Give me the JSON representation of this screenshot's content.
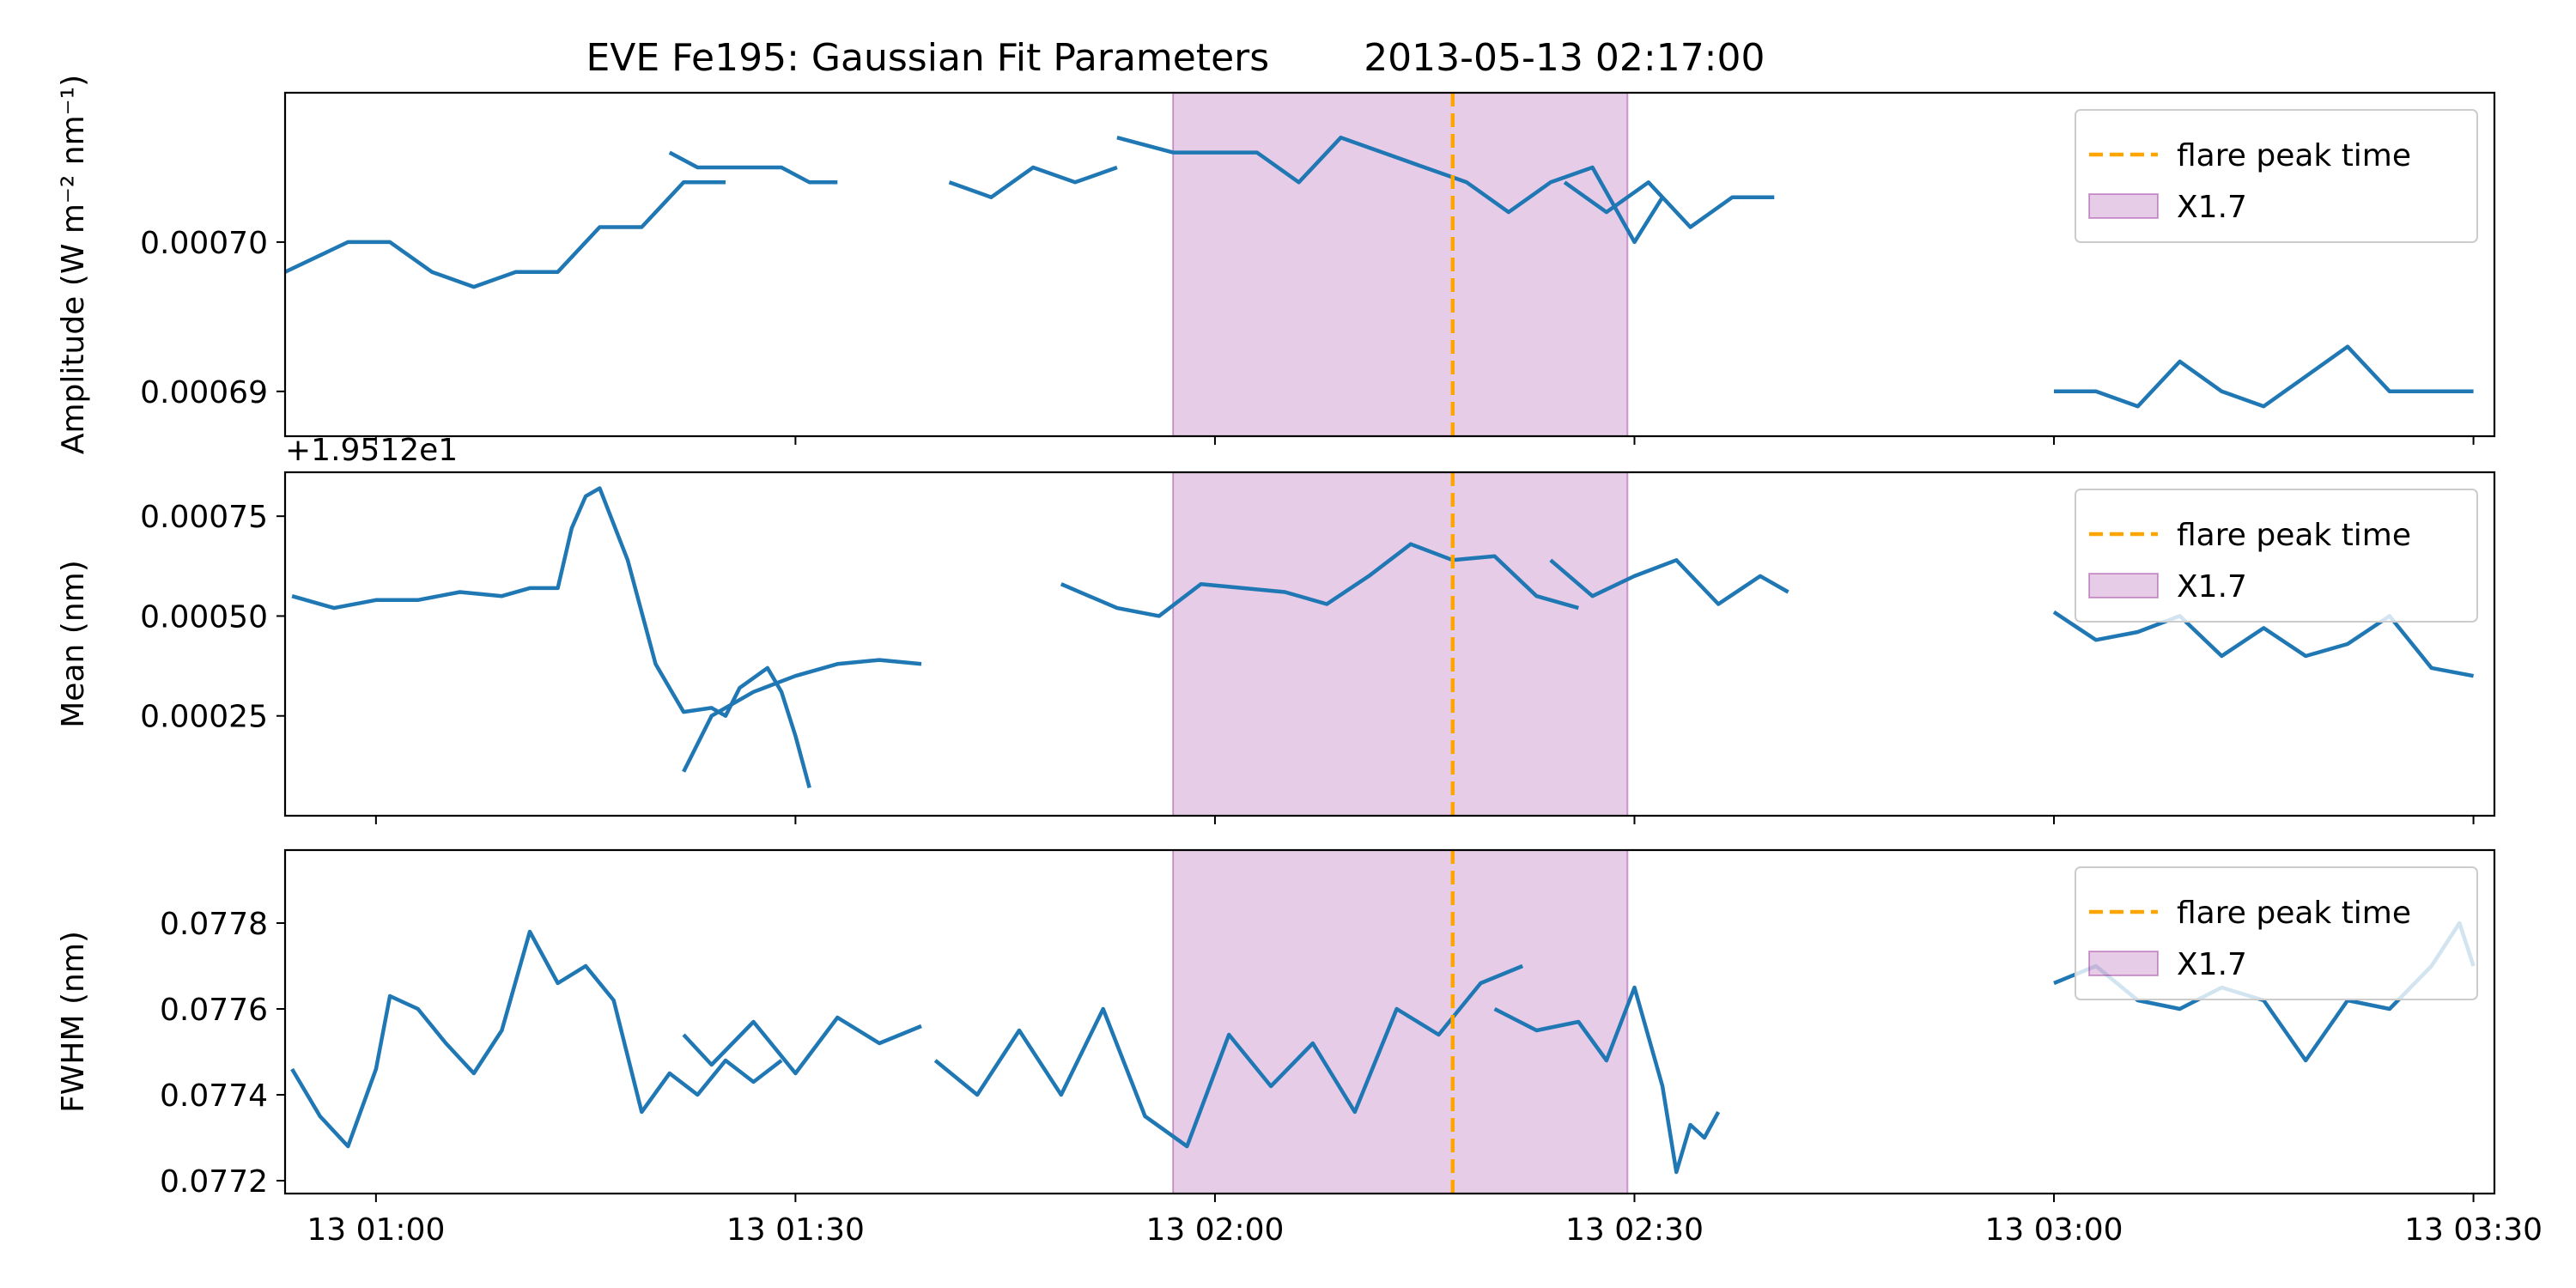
{
  "figure": {
    "title": "EVE Fe195: Gaussian Fit Parameters",
    "timestamp": "2013-05-13 02:17:00",
    "x_tick_labels": [
      "13 01:00",
      "13 01:30",
      "13 02:00",
      "13 02:30",
      "13 03:00",
      "13 03:30"
    ]
  },
  "chart_data": [
    {
      "type": "line",
      "panel": "amplitude",
      "ylabel": "Amplitude (W m⁻² nm⁻¹)",
      "x_unit": "minutes after 2013-05-13 00:00",
      "xlim": [
        53.5,
        211.5
      ],
      "ylim": [
        0.000687,
        0.00071
      ],
      "y_ticks": [
        0.00069,
        0.0007
      ],
      "y_tick_labels": [
        "0.00069",
        "0.00070"
      ],
      "line_color": "#1f77b4",
      "segments": [
        {
          "x": [
            53.5,
            58,
            61,
            64,
            67,
            70,
            73,
            76,
            79,
            82,
            85
          ],
          "y": [
            0.000698,
            0.0007,
            0.0007,
            0.000698,
            0.000697,
            0.000698,
            0.000698,
            0.000701,
            0.000701,
            0.000704,
            0.000704
          ]
        },
        {
          "x": [
            81,
            83,
            86,
            89,
            91,
            93
          ],
          "y": [
            0.000706,
            0.000705,
            0.000705,
            0.000705,
            0.000704,
            0.000704
          ]
        },
        {
          "x": [
            101,
            104,
            107,
            110,
            113
          ],
          "y": [
            0.000704,
            0.000703,
            0.000705,
            0.000704,
            0.000705
          ]
        },
        {
          "x": [
            113,
            117,
            120,
            123,
            126,
            129,
            132,
            135,
            138,
            141,
            144,
            147,
            150,
            152
          ],
          "y": [
            0.000707,
            0.000706,
            0.000706,
            0.000706,
            0.000704,
            0.000707,
            0.000706,
            0.000705,
            0.000704,
            0.000702,
            0.000704,
            0.000705,
            0.0007,
            0.000703
          ]
        },
        {
          "x": [
            145,
            148,
            151,
            154,
            157,
            160
          ],
          "y": [
            0.000704,
            0.000702,
            0.000704,
            0.000701,
            0.000703,
            0.000703
          ]
        },
        {
          "x": [
            180,
            183,
            186,
            189,
            192,
            195,
            198,
            201,
            204,
            207,
            210
          ],
          "y": [
            0.00069,
            0.00069,
            0.000689,
            0.000692,
            0.00069,
            0.000689,
            0.000691,
            0.000693,
            0.00069,
            0.00069,
            0.00069
          ]
        }
      ]
    },
    {
      "type": "line",
      "panel": "mean",
      "ylabel": "Mean (nm)",
      "offset_label": "+1.9512e1",
      "x_unit": "minutes after 2013-05-13 00:00",
      "xlim": [
        53.5,
        211.5
      ],
      "ylim": [
        0.0,
        0.00086
      ],
      "y_ticks": [
        0.00025,
        0.0005,
        0.00075
      ],
      "y_tick_labels": [
        "0.00025",
        "0.00050",
        "0.00075"
      ],
      "line_color": "#1f77b4",
      "segments": [
        {
          "x": [
            54,
            57,
            60,
            63,
            66,
            69,
            71,
            73,
            74,
            75,
            76,
            78,
            80,
            82,
            84,
            85,
            86,
            88,
            89,
            90,
            91
          ],
          "y": [
            0.00055,
            0.00052,
            0.00054,
            0.00054,
            0.00056,
            0.00055,
            0.00057,
            0.00057,
            0.00072,
            0.0008,
            0.00082,
            0.00064,
            0.00038,
            0.00026,
            0.00027,
            0.00025,
            0.00032,
            0.00037,
            0.00031,
            0.0002,
            7e-05
          ]
        },
        {
          "x": [
            82,
            84,
            87,
            90,
            93,
            96,
            99
          ],
          "y": [
            0.00011,
            0.00025,
            0.00031,
            0.00035,
            0.00038,
            0.00039,
            0.00038
          ]
        },
        {
          "x": [
            109,
            113,
            116,
            119,
            122,
            125,
            128,
            131,
            134,
            137,
            140,
            143,
            146
          ],
          "y": [
            0.00058,
            0.00052,
            0.0005,
            0.00058,
            0.00057,
            0.00056,
            0.00053,
            0.0006,
            0.00068,
            0.00064,
            0.00065,
            0.00055,
            0.00052
          ]
        },
        {
          "x": [
            144,
            147,
            150,
            153,
            156,
            159,
            161
          ],
          "y": [
            0.00064,
            0.00055,
            0.0006,
            0.00064,
            0.00053,
            0.0006,
            0.00056
          ]
        },
        {
          "x": [
            180,
            183,
            186,
            189,
            192,
            195,
            198,
            201,
            204,
            207,
            210
          ],
          "y": [
            0.00051,
            0.00044,
            0.00046,
            0.0005,
            0.0004,
            0.00047,
            0.0004,
            0.00043,
            0.0005,
            0.00037,
            0.00035
          ]
        }
      ]
    },
    {
      "type": "line",
      "panel": "fwhm",
      "ylabel": "FWHM (nm)",
      "x_unit": "minutes after 2013-05-13 00:00",
      "xlim": [
        53.5,
        211.5
      ],
      "ylim": [
        0.07717,
        0.07797
      ],
      "y_ticks": [
        0.0772,
        0.0774,
        0.0776,
        0.0778
      ],
      "y_tick_labels": [
        "0.0772",
        "0.0774",
        "0.0776",
        "0.0778"
      ],
      "line_color": "#1f77b4",
      "segments": [
        {
          "x": [
            54,
            56,
            58,
            60,
            61,
            63,
            65,
            67,
            69,
            71,
            73,
            75,
            77,
            79,
            81,
            83,
            85,
            87,
            89
          ],
          "y": [
            0.07746,
            0.07735,
            0.07728,
            0.07746,
            0.07763,
            0.0776,
            0.07752,
            0.07745,
            0.07755,
            0.07778,
            0.07766,
            0.0777,
            0.07762,
            0.07736,
            0.07745,
            0.0774,
            0.07748,
            0.07743,
            0.07748
          ]
        },
        {
          "x": [
            82,
            84,
            87,
            90,
            93,
            96,
            99
          ],
          "y": [
            0.07754,
            0.07747,
            0.07757,
            0.07745,
            0.07758,
            0.07752,
            0.07756
          ]
        },
        {
          "x": [
            100,
            103,
            106,
            109,
            112,
            115,
            118,
            121,
            124,
            127,
            130,
            133,
            136,
            139,
            142
          ],
          "y": [
            0.07748,
            0.0774,
            0.07755,
            0.0774,
            0.0776,
            0.07735,
            0.07728,
            0.07754,
            0.07742,
            0.07752,
            0.07736,
            0.0776,
            0.07754,
            0.07766,
            0.0777
          ]
        },
        {
          "x": [
            140,
            143,
            146,
            148,
            150,
            152,
            153,
            154,
            155,
            156
          ],
          "y": [
            0.0776,
            0.07755,
            0.07757,
            0.07748,
            0.07765,
            0.07742,
            0.07722,
            0.07733,
            0.0773,
            0.07736
          ]
        },
        {
          "x": [
            180,
            183,
            186,
            189,
            192,
            195,
            198,
            201,
            204,
            207,
            209,
            210
          ],
          "y": [
            0.07766,
            0.0777,
            0.07762,
            0.0776,
            0.07765,
            0.07762,
            0.07748,
            0.07762,
            0.0776,
            0.0777,
            0.0778,
            0.0777
          ]
        }
      ]
    }
  ],
  "flare": {
    "peak_time": "2013-05-13 02:17:00",
    "peak_minute": 137,
    "span_start_minute": 117,
    "span_end_minute": 149.5,
    "line_color": "#ffa500",
    "span_color": "#800080"
  },
  "legend": {
    "location": "upper right",
    "items": [
      {
        "label": "flare peak time",
        "kind": "dashed-line"
      },
      {
        "label": "X1.7",
        "kind": "patch"
      }
    ]
  }
}
